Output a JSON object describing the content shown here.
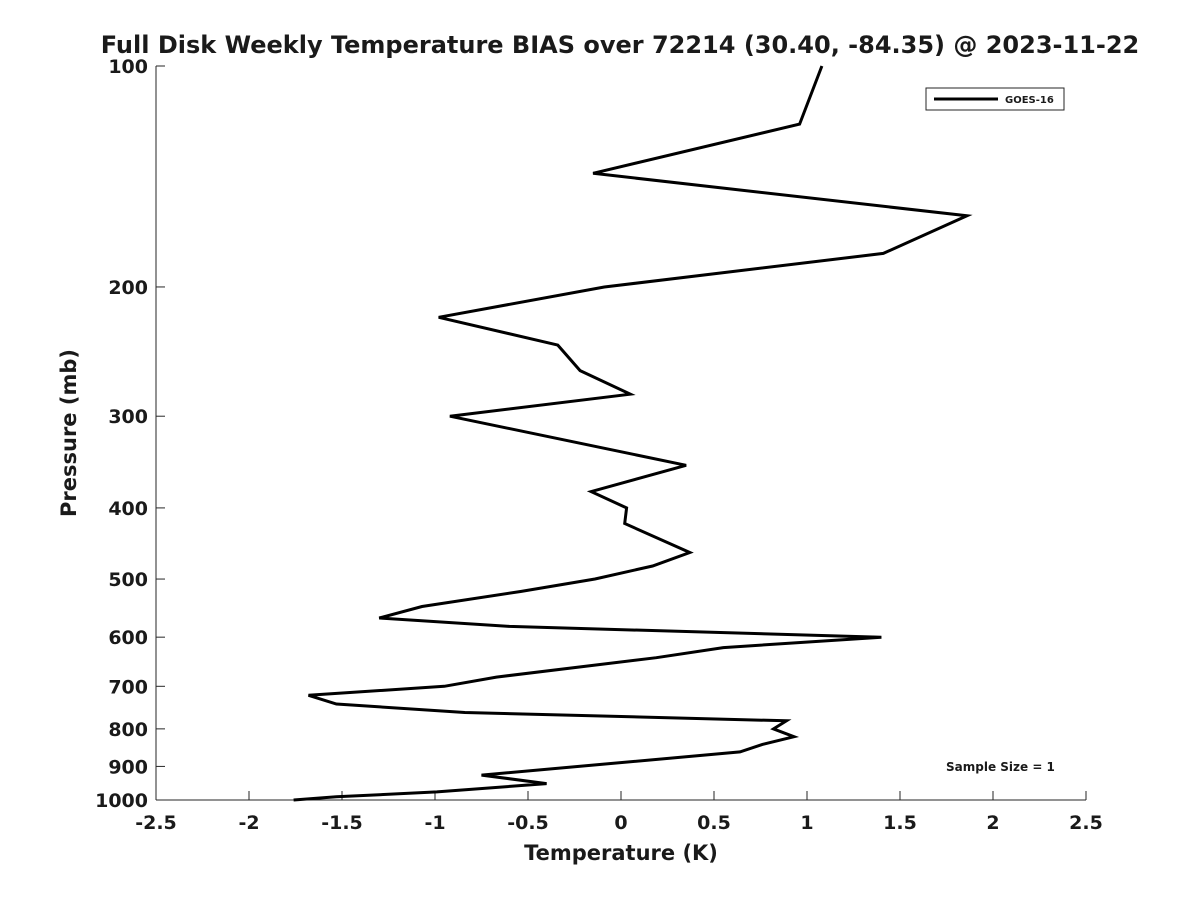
{
  "chart_data": {
    "type": "line",
    "title": "Full Disk Weekly Temperature BIAS over 72214 (30.40, -84.35) @ 2023-11-22",
    "xlabel": "Temperature (K)",
    "ylabel": "Pressure (mb)",
    "xlim": [
      -2.5,
      2.5
    ],
    "ylim": [
      1000,
      100
    ],
    "y_scale": "log",
    "y_reversed": true,
    "x_ticks": [
      -2.5,
      -2,
      -1.5,
      -1,
      -0.5,
      0,
      0.5,
      1,
      1.5,
      2,
      2.5
    ],
    "x_tick_labels": [
      "-2.5",
      "-2",
      "-1.5",
      "-1",
      "-0.5",
      "0",
      "0.5",
      "1",
      "1.5",
      "2",
      "2.5"
    ],
    "y_ticks": [
      100,
      200,
      300,
      400,
      500,
      600,
      700,
      800,
      900,
      1000
    ],
    "y_tick_labels": [
      "100",
      "200",
      "300",
      "400",
      "500",
      "600",
      "700",
      "800",
      "900",
      "1000"
    ],
    "grid": false,
    "legend_position": "top-right",
    "series": [
      {
        "name": "GOES-16",
        "color": "#000000",
        "points": [
          {
            "x": 1.08,
            "p": 100
          },
          {
            "x": 0.96,
            "p": 120
          },
          {
            "x": -0.15,
            "p": 140
          },
          {
            "x": 1.86,
            "p": 160
          },
          {
            "x": 1.41,
            "p": 180
          },
          {
            "x": -0.09,
            "p": 200
          },
          {
            "x": -0.98,
            "p": 220
          },
          {
            "x": -0.34,
            "p": 240
          },
          {
            "x": -0.22,
            "p": 260
          },
          {
            "x": 0.05,
            "p": 280
          },
          {
            "x": -0.92,
            "p": 300
          },
          {
            "x": 0.35,
            "p": 350
          },
          {
            "x": -0.16,
            "p": 380
          },
          {
            "x": 0.03,
            "p": 400
          },
          {
            "x": 0.02,
            "p": 420
          },
          {
            "x": 0.37,
            "p": 460
          },
          {
            "x": 0.17,
            "p": 480
          },
          {
            "x": -0.14,
            "p": 500
          },
          {
            "x": -0.54,
            "p": 520
          },
          {
            "x": -1.07,
            "p": 545
          },
          {
            "x": -1.3,
            "p": 565
          },
          {
            "x": -0.6,
            "p": 580
          },
          {
            "x": 1.4,
            "p": 600
          },
          {
            "x": 0.55,
            "p": 620
          },
          {
            "x": 0.19,
            "p": 640
          },
          {
            "x": -0.67,
            "p": 680
          },
          {
            "x": -0.95,
            "p": 700
          },
          {
            "x": -1.68,
            "p": 720
          },
          {
            "x": -1.53,
            "p": 740
          },
          {
            "x": -0.84,
            "p": 760
          },
          {
            "x": 0.89,
            "p": 780
          },
          {
            "x": 0.82,
            "p": 800
          },
          {
            "x": 0.93,
            "p": 820
          },
          {
            "x": 0.76,
            "p": 840
          },
          {
            "x": 0.64,
            "p": 860
          },
          {
            "x": -0.75,
            "p": 925
          },
          {
            "x": -0.4,
            "p": 950
          },
          {
            "x": -0.99,
            "p": 975
          },
          {
            "x": -1.53,
            "p": 990
          },
          {
            "x": -1.76,
            "p": 1000
          }
        ]
      }
    ],
    "annotations": [
      {
        "text": "Sample Size = 1",
        "position": "bottom-right"
      }
    ]
  }
}
